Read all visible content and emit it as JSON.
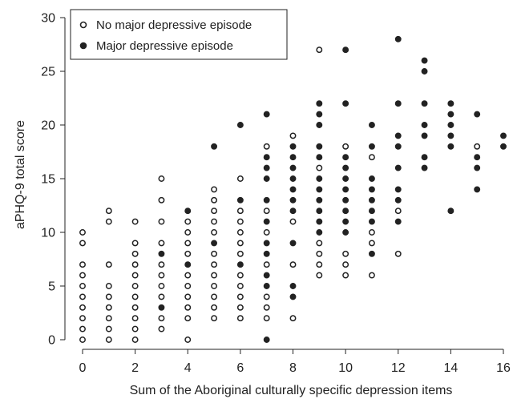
{
  "chart_data": {
    "type": "scatter",
    "title": "",
    "xlabel": "Sum of the Aboriginal culturally specific depression items",
    "ylabel": "aPHQ-9 total score",
    "xlim": [
      0,
      16
    ],
    "ylim": [
      0,
      30
    ],
    "xticks": [
      0,
      2,
      4,
      6,
      8,
      10,
      12,
      14,
      16
    ],
    "yticks": [
      0,
      5,
      10,
      15,
      20,
      25,
      30
    ],
    "grid": false,
    "legend_position": "top-left",
    "series": [
      {
        "name": "No major depressive episode",
        "marker": "open-circle",
        "color": "#222222",
        "points": [
          [
            0,
            0
          ],
          [
            0,
            1
          ],
          [
            0,
            2
          ],
          [
            0,
            3
          ],
          [
            0,
            4
          ],
          [
            0,
            5
          ],
          [
            0,
            6
          ],
          [
            0,
            7
          ],
          [
            0,
            9
          ],
          [
            0,
            10
          ],
          [
            1,
            0
          ],
          [
            1,
            1
          ],
          [
            1,
            2
          ],
          [
            1,
            3
          ],
          [
            1,
            4
          ],
          [
            1,
            5
          ],
          [
            1,
            7
          ],
          [
            1,
            11
          ],
          [
            1,
            12
          ],
          [
            2,
            0
          ],
          [
            2,
            1
          ],
          [
            2,
            2
          ],
          [
            2,
            3
          ],
          [
            2,
            4
          ],
          [
            2,
            5
          ],
          [
            2,
            6
          ],
          [
            2,
            7
          ],
          [
            2,
            8
          ],
          [
            2,
            9
          ],
          [
            2,
            11
          ],
          [
            3,
            1
          ],
          [
            3,
            2
          ],
          [
            3,
            4
          ],
          [
            3,
            5
          ],
          [
            3,
            6
          ],
          [
            3,
            7
          ],
          [
            3,
            9
          ],
          [
            3,
            11
          ],
          [
            3,
            13
          ],
          [
            3,
            15
          ],
          [
            4,
            0
          ],
          [
            4,
            2
          ],
          [
            4,
            3
          ],
          [
            4,
            4
          ],
          [
            4,
            5
          ],
          [
            4,
            6
          ],
          [
            4,
            8
          ],
          [
            4,
            9
          ],
          [
            4,
            10
          ],
          [
            4,
            11
          ],
          [
            5,
            2
          ],
          [
            5,
            3
          ],
          [
            5,
            4
          ],
          [
            5,
            5
          ],
          [
            5,
            6
          ],
          [
            5,
            7
          ],
          [
            5,
            8
          ],
          [
            5,
            10
          ],
          [
            5,
            11
          ],
          [
            5,
            12
          ],
          [
            5,
            13
          ],
          [
            5,
            14
          ],
          [
            6,
            2
          ],
          [
            6,
            3
          ],
          [
            6,
            4
          ],
          [
            6,
            5
          ],
          [
            6,
            6
          ],
          [
            6,
            8
          ],
          [
            6,
            9
          ],
          [
            6,
            10
          ],
          [
            6,
            11
          ],
          [
            6,
            12
          ],
          [
            6,
            15
          ],
          [
            7,
            2
          ],
          [
            7,
            3
          ],
          [
            7,
            4
          ],
          [
            7,
            7
          ],
          [
            7,
            10
          ],
          [
            7,
            12
          ],
          [
            7,
            18
          ],
          [
            8,
            2
          ],
          [
            8,
            7
          ],
          [
            8,
            11
          ],
          [
            8,
            19
          ],
          [
            9,
            6
          ],
          [
            9,
            7
          ],
          [
            9,
            8
          ],
          [
            9,
            9
          ],
          [
            9,
            16
          ],
          [
            9,
            27
          ],
          [
            10,
            6
          ],
          [
            10,
            7
          ],
          [
            10,
            8
          ],
          [
            10,
            18
          ],
          [
            11,
            6
          ],
          [
            11,
            9
          ],
          [
            11,
            10
          ],
          [
            11,
            17
          ],
          [
            12,
            8
          ],
          [
            12,
            12
          ],
          [
            15,
            18
          ]
        ]
      },
      {
        "name": "Major depressive episode",
        "marker": "filled-circle",
        "color": "#222222",
        "points": [
          [
            3,
            3
          ],
          [
            3,
            8
          ],
          [
            4,
            7
          ],
          [
            4,
            12
          ],
          [
            5,
            9
          ],
          [
            5,
            18
          ],
          [
            6,
            7
          ],
          [
            6,
            13
          ],
          [
            6,
            20
          ],
          [
            7,
            0
          ],
          [
            7,
            5
          ],
          [
            7,
            6
          ],
          [
            7,
            8
          ],
          [
            7,
            9
          ],
          [
            7,
            11
          ],
          [
            7,
            13
          ],
          [
            7,
            15
          ],
          [
            7,
            16
          ],
          [
            7,
            17
          ],
          [
            7,
            21
          ],
          [
            8,
            4
          ],
          [
            8,
            5
          ],
          [
            8,
            9
          ],
          [
            8,
            12
          ],
          [
            8,
            13
          ],
          [
            8,
            14
          ],
          [
            8,
            15
          ],
          [
            8,
            16
          ],
          [
            8,
            17
          ],
          [
            8,
            18
          ],
          [
            9,
            10
          ],
          [
            9,
            11
          ],
          [
            9,
            12
          ],
          [
            9,
            13
          ],
          [
            9,
            14
          ],
          [
            9,
            15
          ],
          [
            9,
            17
          ],
          [
            9,
            18
          ],
          [
            9,
            20
          ],
          [
            9,
            21
          ],
          [
            9,
            22
          ],
          [
            10,
            10
          ],
          [
            10,
            11
          ],
          [
            10,
            12
          ],
          [
            10,
            13
          ],
          [
            10,
            14
          ],
          [
            10,
            15
          ],
          [
            10,
            16
          ],
          [
            10,
            17
          ],
          [
            10,
            22
          ],
          [
            10,
            27
          ],
          [
            11,
            8
          ],
          [
            11,
            11
          ],
          [
            11,
            12
          ],
          [
            11,
            13
          ],
          [
            11,
            14
          ],
          [
            11,
            15
          ],
          [
            11,
            18
          ],
          [
            11,
            20
          ],
          [
            12,
            11
          ],
          [
            12,
            13
          ],
          [
            12,
            14
          ],
          [
            12,
            16
          ],
          [
            12,
            18
          ],
          [
            12,
            19
          ],
          [
            12,
            22
          ],
          [
            12,
            28
          ],
          [
            13,
            16
          ],
          [
            13,
            17
          ],
          [
            13,
            19
          ],
          [
            13,
            20
          ],
          [
            13,
            22
          ],
          [
            13,
            25
          ],
          [
            13,
            26
          ],
          [
            14,
            12
          ],
          [
            14,
            18
          ],
          [
            14,
            19
          ],
          [
            14,
            20
          ],
          [
            14,
            21
          ],
          [
            14,
            22
          ],
          [
            15,
            14
          ],
          [
            15,
            16
          ],
          [
            15,
            17
          ],
          [
            15,
            21
          ],
          [
            16,
            18
          ],
          [
            16,
            19
          ]
        ]
      }
    ]
  }
}
